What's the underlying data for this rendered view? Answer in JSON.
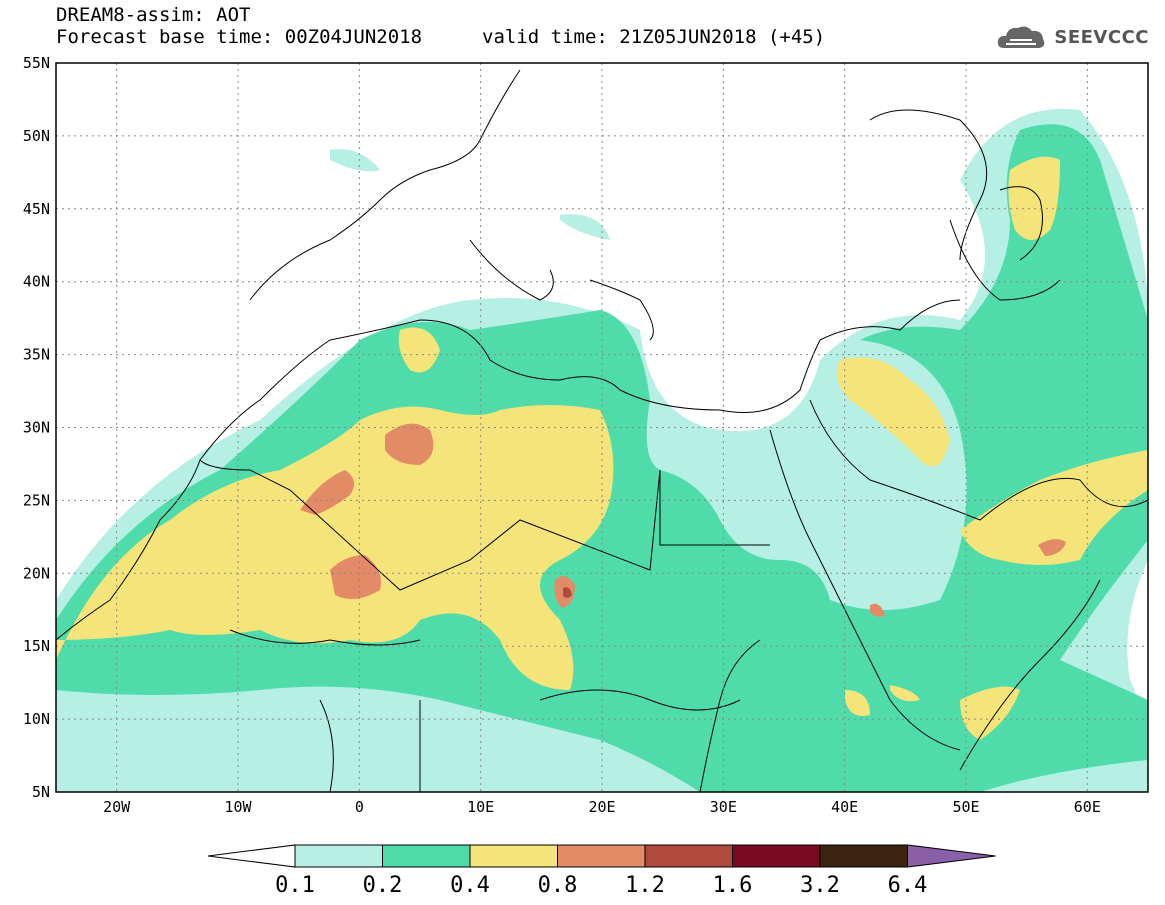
{
  "header": {
    "title_line1": "DREAM8-assim: AOT",
    "base_time": "Forecast base time: 00Z04JUN2018",
    "valid_time": "valid time: 21Z05JUN2018 (+45)"
  },
  "logo": {
    "text": "SEEVCCC",
    "icon": "cloud-icon"
  },
  "map": {
    "lat_labels": [
      "55N",
      "50N",
      "45N",
      "40N",
      "35N",
      "30N",
      "25N",
      "20N",
      "15N",
      "10N",
      "5N"
    ],
    "lon_labels": [
      "20W",
      "10W",
      "0",
      "10E",
      "20E",
      "30E",
      "40E",
      "50E",
      "60E"
    ],
    "lat_range": [
      5,
      55
    ],
    "lon_range": [
      -25,
      65
    ],
    "grid": true
  },
  "legend": {
    "thresholds": [
      "0.1",
      "0.2",
      "0.4",
      "0.8",
      "1.2",
      "1.6",
      "3.2",
      "6.4"
    ],
    "colors": [
      "#ffffff",
      "#b6efe4",
      "#4fdcaa",
      "#f5e47a",
      "#e38a66",
      "#b04a3c",
      "#7a0a22",
      "#3d2410",
      "#8a5fa8"
    ]
  },
  "colors": {
    "c01": "#b6efe4",
    "c02": "#4fdcaa",
    "c04": "#f5e47a",
    "c08": "#e38a66",
    "c12": "#b04a3c",
    "c16": "#7a0a22"
  }
}
